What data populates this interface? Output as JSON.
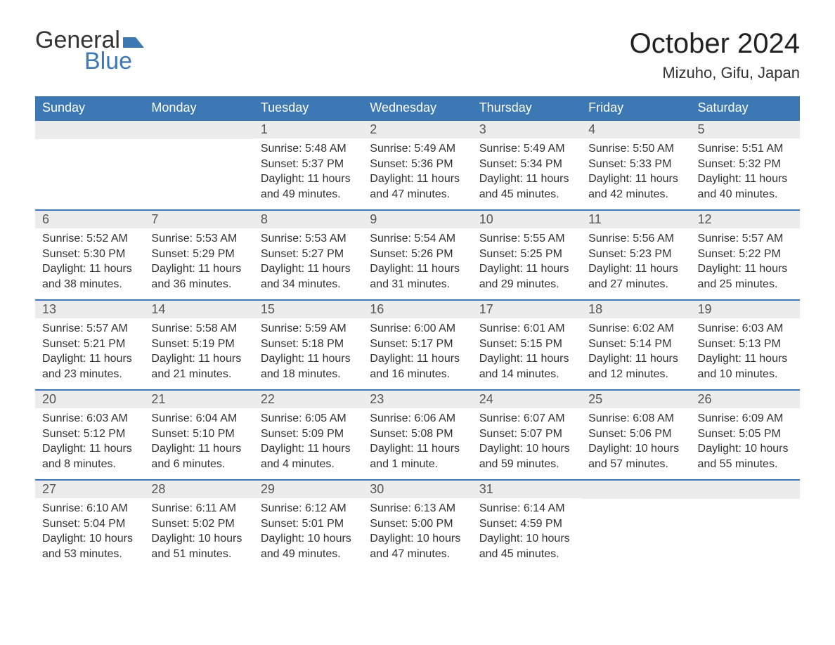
{
  "logo": {
    "word1": "General",
    "word2": "Blue"
  },
  "title": "October 2024",
  "location": "Mizuho, Gifu, Japan",
  "colors": {
    "header_bg": "#3c78b4",
    "header_text": "#ffffff",
    "row_top_border": "#3c78b4",
    "daynum_bg": "#ececec",
    "body_bg": "#ffffff",
    "text": "#333333"
  },
  "typography": {
    "title_fontsize": 40,
    "location_fontsize": 22,
    "weekday_fontsize": 18,
    "daynum_fontsize": 18,
    "body_fontsize": 16
  },
  "weekdays": [
    "Sunday",
    "Monday",
    "Tuesday",
    "Wednesday",
    "Thursday",
    "Friday",
    "Saturday"
  ],
  "weeks": [
    [
      {
        "day": "",
        "sunrise": "",
        "sunset": "",
        "daylight": ""
      },
      {
        "day": "",
        "sunrise": "",
        "sunset": "",
        "daylight": ""
      },
      {
        "day": "1",
        "sunrise": "Sunrise: 5:48 AM",
        "sunset": "Sunset: 5:37 PM",
        "daylight": "Daylight: 11 hours and 49 minutes."
      },
      {
        "day": "2",
        "sunrise": "Sunrise: 5:49 AM",
        "sunset": "Sunset: 5:36 PM",
        "daylight": "Daylight: 11 hours and 47 minutes."
      },
      {
        "day": "3",
        "sunrise": "Sunrise: 5:49 AM",
        "sunset": "Sunset: 5:34 PM",
        "daylight": "Daylight: 11 hours and 45 minutes."
      },
      {
        "day": "4",
        "sunrise": "Sunrise: 5:50 AM",
        "sunset": "Sunset: 5:33 PM",
        "daylight": "Daylight: 11 hours and 42 minutes."
      },
      {
        "day": "5",
        "sunrise": "Sunrise: 5:51 AM",
        "sunset": "Sunset: 5:32 PM",
        "daylight": "Daylight: 11 hours and 40 minutes."
      }
    ],
    [
      {
        "day": "6",
        "sunrise": "Sunrise: 5:52 AM",
        "sunset": "Sunset: 5:30 PM",
        "daylight": "Daylight: 11 hours and 38 minutes."
      },
      {
        "day": "7",
        "sunrise": "Sunrise: 5:53 AM",
        "sunset": "Sunset: 5:29 PM",
        "daylight": "Daylight: 11 hours and 36 minutes."
      },
      {
        "day": "8",
        "sunrise": "Sunrise: 5:53 AM",
        "sunset": "Sunset: 5:27 PM",
        "daylight": "Daylight: 11 hours and 34 minutes."
      },
      {
        "day": "9",
        "sunrise": "Sunrise: 5:54 AM",
        "sunset": "Sunset: 5:26 PM",
        "daylight": "Daylight: 11 hours and 31 minutes."
      },
      {
        "day": "10",
        "sunrise": "Sunrise: 5:55 AM",
        "sunset": "Sunset: 5:25 PM",
        "daylight": "Daylight: 11 hours and 29 minutes."
      },
      {
        "day": "11",
        "sunrise": "Sunrise: 5:56 AM",
        "sunset": "Sunset: 5:23 PM",
        "daylight": "Daylight: 11 hours and 27 minutes."
      },
      {
        "day": "12",
        "sunrise": "Sunrise: 5:57 AM",
        "sunset": "Sunset: 5:22 PM",
        "daylight": "Daylight: 11 hours and 25 minutes."
      }
    ],
    [
      {
        "day": "13",
        "sunrise": "Sunrise: 5:57 AM",
        "sunset": "Sunset: 5:21 PM",
        "daylight": "Daylight: 11 hours and 23 minutes."
      },
      {
        "day": "14",
        "sunrise": "Sunrise: 5:58 AM",
        "sunset": "Sunset: 5:19 PM",
        "daylight": "Daylight: 11 hours and 21 minutes."
      },
      {
        "day": "15",
        "sunrise": "Sunrise: 5:59 AM",
        "sunset": "Sunset: 5:18 PM",
        "daylight": "Daylight: 11 hours and 18 minutes."
      },
      {
        "day": "16",
        "sunrise": "Sunrise: 6:00 AM",
        "sunset": "Sunset: 5:17 PM",
        "daylight": "Daylight: 11 hours and 16 minutes."
      },
      {
        "day": "17",
        "sunrise": "Sunrise: 6:01 AM",
        "sunset": "Sunset: 5:15 PM",
        "daylight": "Daylight: 11 hours and 14 minutes."
      },
      {
        "day": "18",
        "sunrise": "Sunrise: 6:02 AM",
        "sunset": "Sunset: 5:14 PM",
        "daylight": "Daylight: 11 hours and 12 minutes."
      },
      {
        "day": "19",
        "sunrise": "Sunrise: 6:03 AM",
        "sunset": "Sunset: 5:13 PM",
        "daylight": "Daylight: 11 hours and 10 minutes."
      }
    ],
    [
      {
        "day": "20",
        "sunrise": "Sunrise: 6:03 AM",
        "sunset": "Sunset: 5:12 PM",
        "daylight": "Daylight: 11 hours and 8 minutes."
      },
      {
        "day": "21",
        "sunrise": "Sunrise: 6:04 AM",
        "sunset": "Sunset: 5:10 PM",
        "daylight": "Daylight: 11 hours and 6 minutes."
      },
      {
        "day": "22",
        "sunrise": "Sunrise: 6:05 AM",
        "sunset": "Sunset: 5:09 PM",
        "daylight": "Daylight: 11 hours and 4 minutes."
      },
      {
        "day": "23",
        "sunrise": "Sunrise: 6:06 AM",
        "sunset": "Sunset: 5:08 PM",
        "daylight": "Daylight: 11 hours and 1 minute."
      },
      {
        "day": "24",
        "sunrise": "Sunrise: 6:07 AM",
        "sunset": "Sunset: 5:07 PM",
        "daylight": "Daylight: 10 hours and 59 minutes."
      },
      {
        "day": "25",
        "sunrise": "Sunrise: 6:08 AM",
        "sunset": "Sunset: 5:06 PM",
        "daylight": "Daylight: 10 hours and 57 minutes."
      },
      {
        "day": "26",
        "sunrise": "Sunrise: 6:09 AM",
        "sunset": "Sunset: 5:05 PM",
        "daylight": "Daylight: 10 hours and 55 minutes."
      }
    ],
    [
      {
        "day": "27",
        "sunrise": "Sunrise: 6:10 AM",
        "sunset": "Sunset: 5:04 PM",
        "daylight": "Daylight: 10 hours and 53 minutes."
      },
      {
        "day": "28",
        "sunrise": "Sunrise: 6:11 AM",
        "sunset": "Sunset: 5:02 PM",
        "daylight": "Daylight: 10 hours and 51 minutes."
      },
      {
        "day": "29",
        "sunrise": "Sunrise: 6:12 AM",
        "sunset": "Sunset: 5:01 PM",
        "daylight": "Daylight: 10 hours and 49 minutes."
      },
      {
        "day": "30",
        "sunrise": "Sunrise: 6:13 AM",
        "sunset": "Sunset: 5:00 PM",
        "daylight": "Daylight: 10 hours and 47 minutes."
      },
      {
        "day": "31",
        "sunrise": "Sunrise: 6:14 AM",
        "sunset": "Sunset: 4:59 PM",
        "daylight": "Daylight: 10 hours and 45 minutes."
      },
      {
        "day": "",
        "sunrise": "",
        "sunset": "",
        "daylight": ""
      },
      {
        "day": "",
        "sunrise": "",
        "sunset": "",
        "daylight": ""
      }
    ]
  ]
}
